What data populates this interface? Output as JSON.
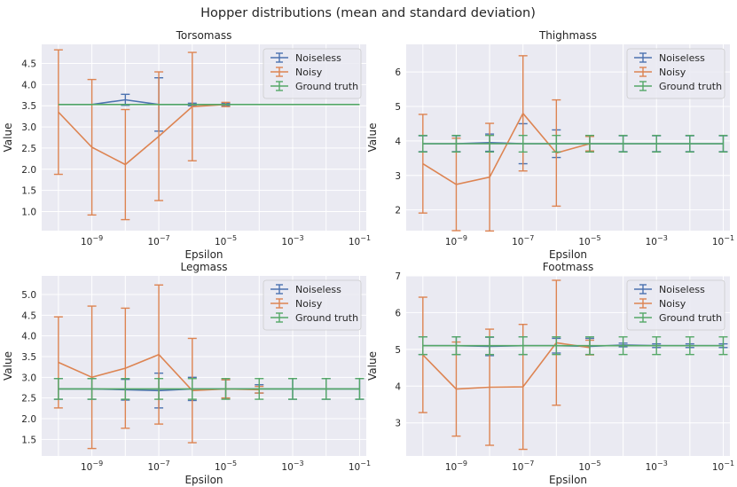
{
  "figure_title": "Hopper distributions (mean and standard deviation)",
  "colors": {
    "noiseless": "#4c72b0",
    "noisy": "#dd8452",
    "ground_truth": "#55a868",
    "panel_bg": "#eaeaf2",
    "grid": "#ffffff"
  },
  "chart_data": [
    {
      "type": "line",
      "title": "Torsomass",
      "xlabel": "Epsilon",
      "ylabel": "Value",
      "xscale": "log",
      "xlim_exp": [
        -10.5,
        -0.8
      ],
      "ylim": [
        0.55,
        4.95
      ],
      "yticks": [
        "1.0",
        "1.5",
        "2.0",
        "2.5",
        "3.0",
        "3.5",
        "4.0",
        "4.5"
      ],
      "xticks": [
        "10^-9",
        "10^-7",
        "10^-5",
        "10^-3",
        "10^-1"
      ],
      "legend": [
        "Noiseless",
        "Noisy",
        "Ground truth"
      ],
      "legend_position": "top-right",
      "series": [
        {
          "name": "Noiseless",
          "x_exp": [
            -10,
            -9,
            -8,
            -7,
            -6,
            -5
          ],
          "mean": [
            3.53,
            3.53,
            3.64,
            3.53,
            3.53,
            3.53
          ],
          "err": [
            0,
            0,
            0.13,
            0.63,
            0.03,
            0.03
          ]
        },
        {
          "name": "Noisy",
          "x_exp": [
            -10,
            -9,
            -8,
            -7,
            -6,
            -5
          ],
          "mean": [
            3.35,
            2.52,
            2.11,
            2.78,
            3.48,
            3.53
          ],
          "err": [
            1.47,
            1.6,
            1.3,
            1.52,
            1.28,
            0.05
          ]
        },
        {
          "name": "Ground truth",
          "x_exp": [
            -10,
            -9,
            -8,
            -7,
            -6,
            -5,
            -4,
            -3,
            -2,
            -1
          ],
          "mean": [
            3.53,
            3.53,
            3.53,
            3.53,
            3.53,
            3.53,
            3.53,
            3.53,
            3.53,
            3.53
          ],
          "err": [
            0,
            0,
            0,
            0,
            0,
            0,
            0,
            0,
            0,
            0
          ]
        }
      ]
    },
    {
      "type": "line",
      "title": "Thighmass",
      "xlabel": "Epsilon",
      "ylabel": "Value",
      "xscale": "log",
      "xlim_exp": [
        -10.5,
        -0.8
      ],
      "ylim": [
        1.4,
        6.8
      ],
      "yticks": [
        "2",
        "3",
        "4",
        "5",
        "6"
      ],
      "xticks": [
        "10^-9",
        "10^-7",
        "10^-5",
        "10^-3",
        "10^-1"
      ],
      "legend": [
        "Noiseless",
        "Noisy",
        "Ground truth"
      ],
      "legend_position": "top-right",
      "series": [
        {
          "name": "Noiseless",
          "x_exp": [
            -10,
            -9,
            -8,
            -7,
            -6,
            -5,
            -4,
            -3,
            -2,
            -1
          ],
          "mean": [
            3.92,
            3.92,
            3.95,
            3.92,
            3.92,
            3.92,
            3.92,
            3.92,
            3.92,
            3.92
          ],
          "err": [
            0.23,
            0.23,
            0.25,
            0.58,
            0.4,
            0.23,
            0.23,
            0.23,
            0.23,
            0.23
          ]
        },
        {
          "name": "Noisy",
          "x_exp": [
            -10,
            -9,
            -8,
            -7,
            -6,
            -5
          ],
          "mean": [
            3.34,
            2.74,
            2.95,
            4.8,
            3.65,
            3.92
          ],
          "err": [
            1.43,
            1.34,
            1.56,
            1.67,
            1.54,
            0.21
          ]
        },
        {
          "name": "Ground truth",
          "x_exp": [
            -10,
            -9,
            -8,
            -7,
            -6,
            -5,
            -4,
            -3,
            -2,
            -1
          ],
          "mean": [
            3.92,
            3.92,
            3.92,
            3.92,
            3.92,
            3.92,
            3.92,
            3.92,
            3.92,
            3.92
          ],
          "err": [
            0.24,
            0.24,
            0.24,
            0.24,
            0.24,
            0.24,
            0.24,
            0.24,
            0.24,
            0.24
          ]
        }
      ]
    },
    {
      "type": "line",
      "title": "Legmass",
      "xlabel": "Epsilon",
      "ylabel": "Value",
      "xscale": "log",
      "xlim_exp": [
        -10.5,
        -0.8
      ],
      "ylim": [
        1.1,
        5.45
      ],
      "yticks": [
        "1.5",
        "2.0",
        "2.5",
        "3.0",
        "3.5",
        "4.0",
        "4.5",
        "5.0"
      ],
      "xticks": [
        "10^-9",
        "10^-7",
        "10^-5",
        "10^-3",
        "10^-1"
      ],
      "legend": [
        "Noiseless",
        "Noisy",
        "Ground truth"
      ],
      "legend_position": "top-right",
      "series": [
        {
          "name": "Noiseless",
          "x_exp": [
            -10,
            -9,
            -8,
            -7,
            -6,
            -5,
            -4,
            -3,
            -2,
            -1
          ],
          "mean": [
            2.72,
            2.72,
            2.7,
            2.68,
            2.72,
            2.72,
            2.72,
            2.72,
            2.72,
            2.72
          ],
          "err": [
            0.25,
            0.25,
            0.25,
            0.42,
            0.28,
            0.22,
            0.1,
            0.25,
            0.25,
            0.25
          ]
        },
        {
          "name": "Noisy",
          "x_exp": [
            -10,
            -9,
            -8,
            -7,
            -6,
            -5,
            -4
          ],
          "mean": [
            3.36,
            3.0,
            3.22,
            3.55,
            2.68,
            2.72,
            2.7
          ],
          "err": [
            1.1,
            1.72,
            1.45,
            1.68,
            1.26,
            0.22,
            0.08
          ]
        },
        {
          "name": "Ground truth",
          "x_exp": [
            -10,
            -9,
            -8,
            -7,
            -6,
            -5,
            -4,
            -3,
            -2,
            -1
          ],
          "mean": [
            2.72,
            2.72,
            2.72,
            2.72,
            2.72,
            2.72,
            2.72,
            2.72,
            2.72,
            2.72
          ],
          "err": [
            0.25,
            0.25,
            0.25,
            0.25,
            0.25,
            0.25,
            0.25,
            0.25,
            0.25,
            0.25
          ]
        }
      ]
    },
    {
      "type": "line",
      "title": "Footmass",
      "xlabel": "Epsilon",
      "ylabel": "Value",
      "xscale": "log",
      "xlim_exp": [
        -10.5,
        -0.8
      ],
      "ylim": [
        2.1,
        7.0
      ],
      "yticks": [
        "3",
        "4",
        "5",
        "6",
        "7"
      ],
      "xticks": [
        "10^-9",
        "10^-7",
        "10^-5",
        "10^-3",
        "10^-1"
      ],
      "legend": [
        "Noiseless",
        "Noisy",
        "Ground truth"
      ],
      "legend_position": "top-right",
      "series": [
        {
          "name": "Noiseless",
          "x_exp": [
            -10,
            -9,
            -8,
            -7,
            -6,
            -5,
            -4,
            -3,
            -2,
            -1
          ],
          "mean": [
            5.1,
            5.1,
            5.08,
            5.1,
            5.1,
            5.08,
            5.12,
            5.1,
            5.1,
            5.1
          ],
          "err": [
            0.24,
            0.24,
            0.25,
            0.24,
            0.2,
            0.22,
            0.05,
            0.05,
            0.05,
            0.05
          ]
        },
        {
          "name": "Noisy",
          "x_exp": [
            -10,
            -9,
            -8,
            -7,
            -6,
            -5
          ],
          "mean": [
            4.85,
            3.92,
            3.97,
            3.98,
            5.18,
            5.05
          ],
          "err": [
            1.57,
            1.28,
            1.58,
            1.7,
            1.7,
            0.2
          ]
        },
        {
          "name": "Ground truth",
          "x_exp": [
            -10,
            -9,
            -8,
            -7,
            -6,
            -5,
            -4,
            -3,
            -2,
            -1
          ],
          "mean": [
            5.1,
            5.1,
            5.1,
            5.1,
            5.1,
            5.1,
            5.1,
            5.1,
            5.1,
            5.1
          ],
          "err": [
            0.24,
            0.24,
            0.24,
            0.24,
            0.24,
            0.24,
            0.24,
            0.24,
            0.24,
            0.24
          ]
        }
      ]
    }
  ]
}
